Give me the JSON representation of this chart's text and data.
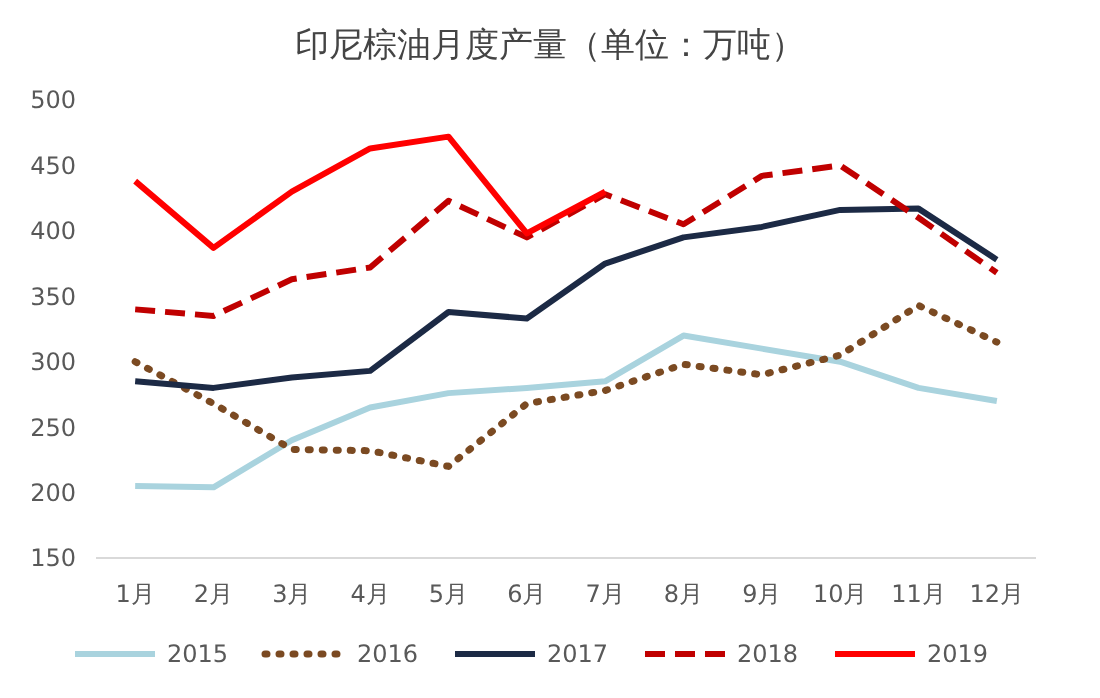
{
  "chart_data": {
    "type": "line",
    "title": "印尼棕油月度产量（单位：万吨）",
    "categories": [
      "1月",
      "2月",
      "3月",
      "4月",
      "5月",
      "6月",
      "7月",
      "8月",
      "9月",
      "10月",
      "11月",
      "12月"
    ],
    "series": [
      {
        "name": "2015",
        "color": "#a9d3de",
        "line_style": "solid",
        "values": [
          205,
          204,
          240,
          265,
          276,
          280,
          285,
          320,
          310,
          300,
          280,
          270
        ]
      },
      {
        "name": "2016",
        "color": "#7b4a22",
        "line_style": "dotted",
        "values": [
          300,
          268,
          233,
          232,
          220,
          268,
          278,
          298,
          290,
          305,
          343,
          315
        ]
      },
      {
        "name": "2017",
        "color": "#1c2a45",
        "line_style": "solid",
        "values": [
          285,
          280,
          288,
          293,
          338,
          333,
          375,
          395,
          403,
          416,
          417,
          378
        ]
      },
      {
        "name": "2018",
        "color": "#c00000",
        "line_style": "dashed",
        "values": [
          340,
          335,
          363,
          372,
          423,
          395,
          428,
          405,
          442,
          450,
          410,
          368
        ]
      },
      {
        "name": "2019",
        "color": "#ff0000",
        "line_style": "solid",
        "values": [
          438,
          387,
          430,
          463,
          472,
          398,
          430,
          null,
          null,
          null,
          null,
          null
        ]
      }
    ],
    "ylim": [
      150,
      500
    ],
    "yticks": [
      150,
      200,
      250,
      300,
      350,
      400,
      450,
      500
    ],
    "grid": false,
    "legend": "bottom"
  }
}
